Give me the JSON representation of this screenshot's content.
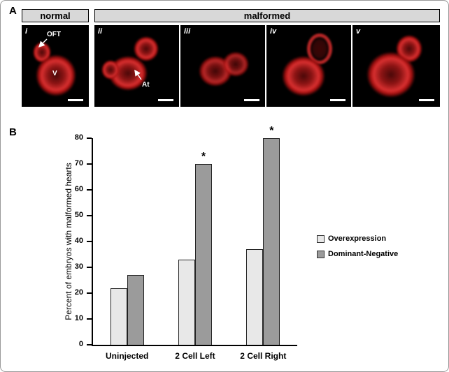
{
  "figure": {
    "panel_a": {
      "label": "A",
      "normal_header": "normal",
      "malformed_header": "malformed",
      "images": [
        {
          "roman": "i",
          "labels": {
            "oft": "OFT",
            "v": "V"
          }
        },
        {
          "roman": "ii",
          "labels": {
            "at": "At"
          }
        },
        {
          "roman": "iii"
        },
        {
          "roman": "iv"
        },
        {
          "roman": "v"
        }
      ]
    },
    "panel_b": {
      "label": "B"
    }
  },
  "chart_data": {
    "type": "bar",
    "title": "",
    "categories": [
      "Uninjected",
      "2 Cell Left",
      "2 Cell Right"
    ],
    "series": [
      {
        "name": "Overexpression",
        "values": [
          22,
          33,
          37
        ],
        "color": "#e8e8e8",
        "stars": [
          false,
          false,
          false
        ]
      },
      {
        "name": "Dominant-Negative",
        "values": [
          27,
          70,
          80
        ],
        "color": "#9b9b9b",
        "stars": [
          false,
          true,
          true
        ]
      }
    ],
    "star_symbol": "*",
    "xlabel": "",
    "ylabel": "Percent of embryos with malformed hearts",
    "ylim": [
      0,
      80
    ],
    "ytick_step": 10,
    "grid": false,
    "legend_position": "right"
  }
}
